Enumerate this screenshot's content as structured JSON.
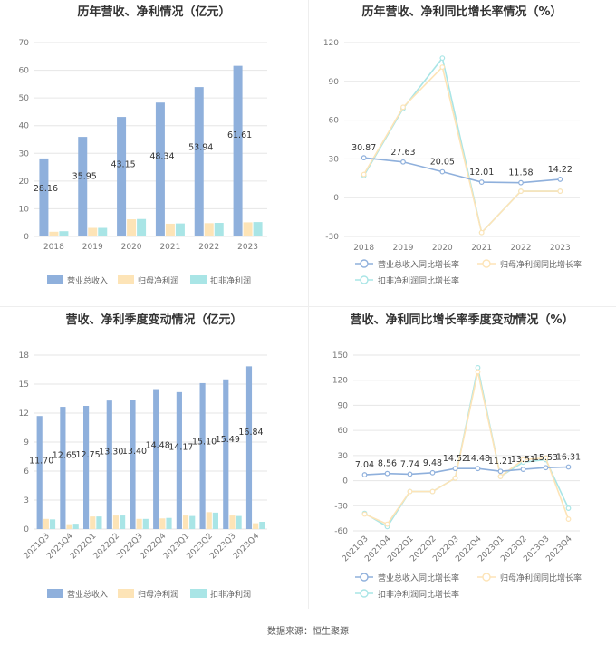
{
  "source": "数据来源：恒生聚源",
  "colors": {
    "revenue": "#8fb0dc",
    "net_profit": "#fde4b7",
    "deducted": "#a9e5e6"
  },
  "chart_data": [
    {
      "type": "bar",
      "title": "历年营收、净利情况（亿元）",
      "categories": [
        "2018",
        "2019",
        "2020",
        "2021",
        "2022",
        "2023"
      ],
      "ylim": [
        0,
        70
      ],
      "yticks": [
        0,
        10,
        20,
        30,
        40,
        50,
        60,
        70
      ],
      "legend_position": "bottom",
      "series": [
        {
          "name": "营业总收入",
          "color": "#8fb0dc",
          "values": [
            28.16,
            35.95,
            43.15,
            48.34,
            53.94,
            61.61
          ],
          "labels": [
            "28.16",
            "35.95",
            "43.15",
            "48.34",
            "53.94",
            "61.61"
          ]
        },
        {
          "name": "归母净利润",
          "color": "#fde4b7",
          "values": [
            1.7,
            3.1,
            6.2,
            4.6,
            4.8,
            5.1
          ]
        },
        {
          "name": "扣非净利润",
          "color": "#a9e5e6",
          "values": [
            1.9,
            3.1,
            6.3,
            4.7,
            4.9,
            5.2
          ]
        }
      ]
    },
    {
      "type": "line",
      "title": "历年营收、净利同比增长率情况（%）",
      "categories": [
        "2018",
        "2019",
        "2020",
        "2021",
        "2022",
        "2023"
      ],
      "ylim": [
        -30,
        120
      ],
      "yticks": [
        -30,
        0,
        30,
        60,
        90,
        120
      ],
      "legend_position": "bottom",
      "series": [
        {
          "name": "营业总收入同比增长率",
          "color": "#8fb0dc",
          "values": [
            30.87,
            27.63,
            20.05,
            12.01,
            11.58,
            14.22
          ],
          "labels": [
            "30.87",
            "27.63",
            "20.05",
            "12.01",
            "11.58",
            "14.22"
          ]
        },
        {
          "name": "归母净利润同比增长率",
          "color": "#fde4b7",
          "values": [
            18,
            70,
            101,
            -27,
            5,
            5
          ]
        },
        {
          "name": "扣非净利润同比增长率",
          "color": "#a9e5e6",
          "values": [
            17,
            69,
            108,
            -27,
            5,
            5
          ]
        }
      ]
    },
    {
      "type": "bar",
      "title": "营收、净利季度变动情况（亿元）",
      "categories": [
        "2021Q3",
        "2021Q4",
        "2022Q1",
        "2022Q2",
        "2022Q3",
        "2022Q4",
        "2023Q1",
        "2023Q2",
        "2023Q3",
        "2023Q4"
      ],
      "ylim": [
        0,
        18
      ],
      "yticks": [
        0,
        3,
        6,
        9,
        12,
        15,
        18
      ],
      "legend_position": "bottom",
      "series": [
        {
          "name": "营业总收入",
          "color": "#8fb0dc",
          "values": [
            11.7,
            12.65,
            12.75,
            13.3,
            13.4,
            14.48,
            14.17,
            15.1,
            15.49,
            16.84
          ],
          "labels": [
            "11.70",
            "12.65",
            "12.75",
            "13.30",
            "13.40",
            "14.48",
            "14.17",
            "15.10",
            "15.49",
            "16.84"
          ]
        },
        {
          "name": "归母净利润",
          "color": "#fde4b7",
          "values": [
            1.05,
            0.5,
            1.3,
            1.4,
            1.05,
            1.1,
            1.4,
            1.75,
            1.4,
            0.6
          ]
        },
        {
          "name": "扣非净利润",
          "color": "#a9e5e6",
          "values": [
            1.0,
            0.55,
            1.3,
            1.4,
            1.05,
            1.15,
            1.35,
            1.7,
            1.35,
            0.75
          ]
        }
      ]
    },
    {
      "type": "line",
      "title": "营收、净利同比增长率季度变动情况（%）",
      "categories": [
        "2021Q3",
        "2021Q4",
        "2022Q1",
        "2022Q2",
        "2022Q3",
        "2022Q4",
        "2023Q1",
        "2023Q2",
        "2023Q3",
        "2023Q4"
      ],
      "ylim": [
        -60,
        150
      ],
      "yticks": [
        -60,
        -30,
        0,
        30,
        60,
        90,
        120,
        150
      ],
      "legend_position": "bottom",
      "series": [
        {
          "name": "营业总收入同比增长率",
          "color": "#8fb0dc",
          "values": [
            7.04,
            8.56,
            7.74,
            9.48,
            14.52,
            14.48,
            11.21,
            13.51,
            15.53,
            16.31
          ],
          "labels": [
            "7.04",
            "8.56",
            "7.74",
            "9.48",
            "14.52",
            "14.48",
            "11.21",
            "13.51",
            "15.53",
            "16.31"
          ]
        },
        {
          "name": "归母净利润同比增长率",
          "color": "#fde4b7",
          "values": [
            -40,
            -52,
            -13,
            -13,
            3,
            130,
            5,
            25,
            27,
            -46
          ]
        },
        {
          "name": "扣非净利润同比增长率",
          "color": "#a9e5e6",
          "values": [
            -39,
            -55,
            -13,
            -13,
            3,
            135,
            5,
            22,
            25,
            -33
          ]
        }
      ]
    }
  ]
}
